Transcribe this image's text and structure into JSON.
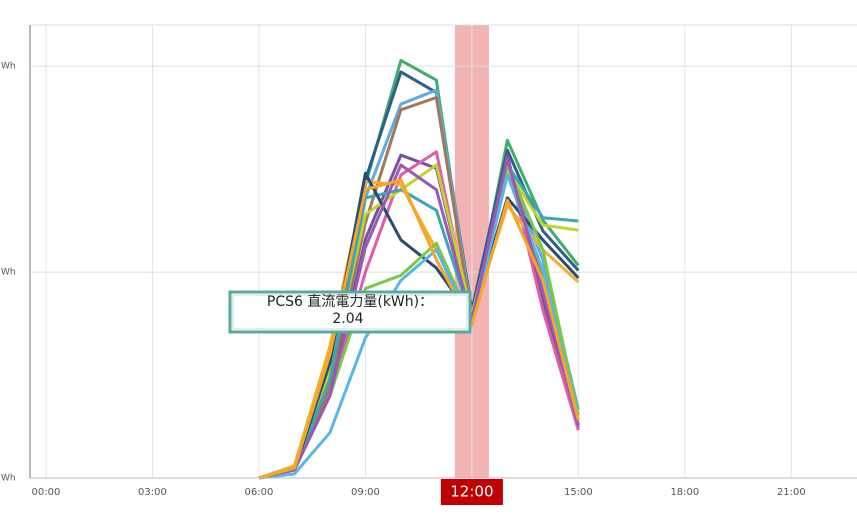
{
  "chart_data": {
    "type": "line",
    "x": [
      6,
      7,
      8,
      9,
      10,
      11,
      12,
      13,
      14,
      15
    ],
    "xlim": [
      -0.45,
      22.85
    ],
    "xticks": [
      {
        "value": 0,
        "label": "00:00"
      },
      {
        "value": 3,
        "label": "03:00"
      },
      {
        "value": 6,
        "label": "06:00"
      },
      {
        "value": 9,
        "label": "09:00"
      },
      {
        "value": 12,
        "label": "12:00"
      },
      {
        "value": 15,
        "label": "15:00"
      },
      {
        "value": 18,
        "label": "18:00"
      },
      {
        "value": 21,
        "label": "21:00"
      }
    ],
    "highlight_tick": 4,
    "highlight": [
      11.52,
      12.48
    ],
    "ylim": [
      0,
      5.5
    ],
    "yticks": [
      {
        "value": 0,
        "label": "Wh"
      },
      {
        "value": 2.5,
        "label": "Wh"
      },
      {
        "value": 5,
        "label": "Wh"
      }
    ],
    "grid": true,
    "tooltip": {
      "label": "PCS6 直流電力量(kWh)：",
      "value": 2.04
    },
    "series": [
      {
        "color": "#3cae6e",
        "values": [
          0,
          0.1,
          1.43,
          3.56,
          5.07,
          4.83,
          1.92,
          4.1,
          3.13,
          2.58
        ]
      },
      {
        "color": "#2c5f8a",
        "values": [
          0,
          0.12,
          1.3,
          3.62,
          4.93,
          4.68,
          2.04,
          3.98,
          3.0,
          2.52
        ]
      },
      {
        "color": "#5dade2",
        "values": [
          0,
          0.1,
          1.2,
          3.4,
          4.54,
          4.71,
          1.98,
          3.74,
          2.65,
          0.83
        ]
      },
      {
        "color": "#a0785a",
        "values": [
          0,
          0.1,
          1.1,
          3.1,
          4.47,
          4.62,
          1.92,
          3.86,
          2.4,
          0.64
        ]
      },
      {
        "color": "#7b4f9d",
        "values": [
          0,
          0.1,
          1.0,
          2.9,
          3.92,
          3.76,
          1.94,
          3.92,
          2.16,
          0.61
        ]
      },
      {
        "color": "#e05ba8",
        "values": [
          0,
          0.1,
          1.0,
          2.5,
          3.68,
          3.96,
          1.86,
          3.86,
          2.04,
          0.58
        ]
      },
      {
        "color": "#c5d12e",
        "values": [
          0,
          0.1,
          1.3,
          3.2,
          3.5,
          3.8,
          1.98,
          3.74,
          3.07,
          3.01
        ]
      },
      {
        "color": "#3aa6b9",
        "values": [
          0,
          0.1,
          1.2,
          3.4,
          3.5,
          3.25,
          1.92,
          3.8,
          3.16,
          3.12
        ]
      },
      {
        "color": "#f0b030",
        "values": [
          0,
          0.15,
          1.6,
          3.6,
          3.56,
          2.77,
          1.94,
          3.31,
          2.77,
          2.38
        ]
      },
      {
        "color": "#2b4a7a",
        "values": [
          0,
          0.1,
          1.4,
          3.7,
          2.89,
          2.55,
          1.94,
          3.4,
          2.89,
          2.43
        ]
      },
      {
        "color": "#7ac943",
        "values": [
          0,
          0.1,
          1.0,
          2.3,
          2.46,
          2.85,
          1.89,
          3.8,
          2.77,
          0.76
        ]
      },
      {
        "color": "#56b8e6",
        "values": [
          0,
          0.05,
          0.55,
          1.7,
          2.4,
          2.77,
          1.86,
          3.68,
          2.52,
          0.7
        ]
      },
      {
        "color": "#9b59b6",
        "values": [
          0,
          0.1,
          1.0,
          2.8,
          3.8,
          3.5,
          1.92,
          3.88,
          2.28,
          0.64
        ]
      },
      {
        "color": "#f5a623",
        "values": [
          0,
          0.12,
          1.5,
          3.5,
          3.62,
          2.65,
          1.86,
          3.37,
          2.4,
          0.7
        ]
      }
    ]
  }
}
